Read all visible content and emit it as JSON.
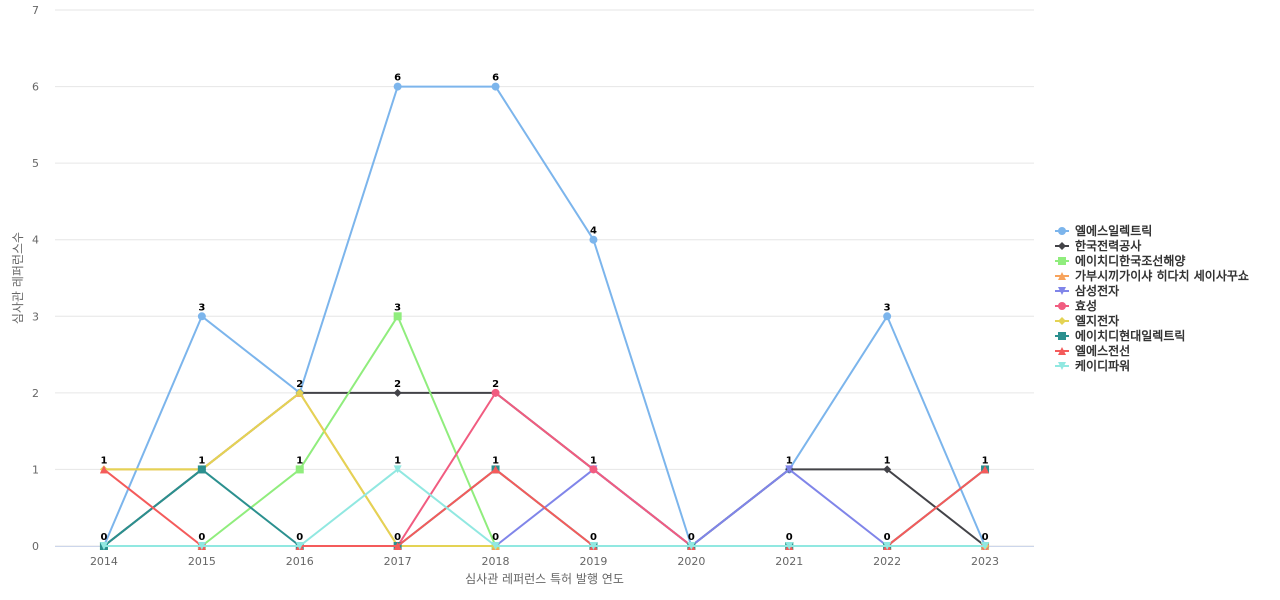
{
  "chart_data": {
    "type": "line",
    "title": "",
    "xlabel": "심사관 레퍼런스 특허 발행 연도",
    "ylabel": "심사관 레퍼런스수",
    "x": [
      "2014",
      "2015",
      "2016",
      "2017",
      "2018",
      "2019",
      "2020",
      "2021",
      "2022",
      "2023"
    ],
    "ylim": [
      0,
      7
    ],
    "yticks": [
      0,
      1,
      2,
      3,
      4,
      5,
      6,
      7
    ],
    "grid": true,
    "legend_position": "right",
    "series": [
      {
        "name": "엘에스일렉트릭",
        "color": "#7cb5ec",
        "marker": "circle",
        "values": [
          0,
          3,
          2,
          6,
          6,
          4,
          0,
          1,
          3,
          0
        ]
      },
      {
        "name": "한국전력공사",
        "color": "#434348",
        "marker": "diamond",
        "values": [
          0,
          1,
          2,
          2,
          2,
          1,
          0,
          1,
          1,
          0
        ]
      },
      {
        "name": "에이치디한국조선해양",
        "color": "#90ed7d",
        "marker": "square",
        "values": [
          0,
          0,
          1,
          3,
          0,
          0,
          0,
          0,
          0,
          0
        ]
      },
      {
        "name": "가부시끼가이샤 히다치 세이사꾸쇼",
        "color": "#f7a35c",
        "marker": "triangle",
        "values": [
          1,
          1,
          2,
          0,
          0,
          0,
          0,
          0,
          0,
          0
        ]
      },
      {
        "name": "삼성전자",
        "color": "#8085e9",
        "marker": "triangle-down",
        "values": [
          0,
          0,
          0,
          0,
          0,
          1,
          0,
          1,
          0,
          0
        ]
      },
      {
        "name": "효성",
        "color": "#f15c80",
        "marker": "circle",
        "values": [
          0,
          0,
          0,
          0,
          2,
          1,
          0,
          0,
          0,
          0
        ]
      },
      {
        "name": "엘지전자",
        "color": "#e4d354",
        "marker": "diamond",
        "values": [
          1,
          1,
          2,
          0,
          0,
          0,
          0,
          0,
          0,
          0
        ]
      },
      {
        "name": "에이치디현대일렉트릭",
        "color": "#2b908f",
        "marker": "square",
        "values": [
          0,
          1,
          0,
          0,
          1,
          0,
          0,
          0,
          0,
          1
        ]
      },
      {
        "name": "엘에스전선",
        "color": "#f45b5b",
        "marker": "triangle",
        "values": [
          1,
          0,
          0,
          0,
          1,
          0,
          0,
          0,
          0,
          1
        ]
      },
      {
        "name": "케이디파워",
        "color": "#91e8e1",
        "marker": "triangle-down",
        "values": [
          0,
          0,
          0,
          1,
          0,
          0,
          0,
          0,
          0,
          0
        ]
      }
    ],
    "data_labels": [
      {
        "x": "2014",
        "text": "1",
        "anchor": 1
      },
      {
        "x": "2014",
        "text": "0",
        "anchor": 0
      },
      {
        "x": "2015",
        "text": "3",
        "anchor": 3
      },
      {
        "x": "2015",
        "text": "1",
        "anchor": 1
      },
      {
        "x": "2015",
        "text": "0",
        "anchor": 0
      },
      {
        "x": "2016",
        "text": "2",
        "anchor": 2
      },
      {
        "x": "2016",
        "text": "1",
        "anchor": 1
      },
      {
        "x": "2016",
        "text": "0",
        "anchor": 0
      },
      {
        "x": "2017",
        "text": "6",
        "anchor": 6
      },
      {
        "x": "2017",
        "text": "3",
        "anchor": 3
      },
      {
        "x": "2017",
        "text": "2",
        "anchor": 2
      },
      {
        "x": "2017",
        "text": "1",
        "anchor": 1
      },
      {
        "x": "2017",
        "text": "0",
        "anchor": 0
      },
      {
        "x": "2018",
        "text": "6",
        "anchor": 6
      },
      {
        "x": "2018",
        "text": "2",
        "anchor": 2
      },
      {
        "x": "2018",
        "text": "1",
        "anchor": 1
      },
      {
        "x": "2018",
        "text": "0",
        "anchor": 0
      },
      {
        "x": "2019",
        "text": "4",
        "anchor": 4
      },
      {
        "x": "2019",
        "text": "1",
        "anchor": 1
      },
      {
        "x": "2019",
        "text": "0",
        "anchor": 0
      },
      {
        "x": "2020",
        "text": "0",
        "anchor": 0
      },
      {
        "x": "2021",
        "text": "1",
        "anchor": 1
      },
      {
        "x": "2021",
        "text": "0",
        "anchor": 0
      },
      {
        "x": "2022",
        "text": "3",
        "anchor": 3
      },
      {
        "x": "2022",
        "text": "1",
        "anchor": 1
      },
      {
        "x": "2022",
        "text": "0",
        "anchor": 0
      },
      {
        "x": "2023",
        "text": "1",
        "anchor": 1
      },
      {
        "x": "2023",
        "text": "0",
        "anchor": 0
      }
    ]
  }
}
